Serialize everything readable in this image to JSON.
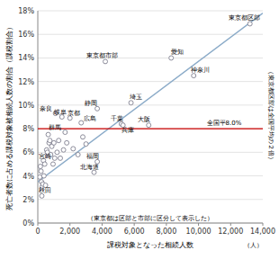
{
  "chart_data": {
    "type": "scatter",
    "xlabel": "課税対象となった相続人数",
    "ylabel": "死亡者数に占める課税対象被相続人数の割合（課税割合）",
    "note": "（東京都は区部と市部に区分して表示した）",
    "unit": "（人）",
    "side_note": "（東京都区部は全国平均の２倍）",
    "series": [
      {
        "type": "scatter",
        "marker": "circle",
        "color": "#808090",
        "x": [
          13200,
          4200,
          8300,
          9700,
          5800,
          3700,
          5200,
          5300,
          6900,
          1100,
          1500,
          2000,
          2700,
          1700,
          3700,
          3500,
          350,
          250,
          130,
          160,
          200,
          230,
          280,
          320,
          380,
          430,
          480,
          550,
          600,
          650,
          700,
          750,
          800,
          870,
          950,
          1000,
          1050,
          1200,
          1300,
          1400,
          1600,
          1800,
          2200,
          2500,
          2800,
          3000
        ],
        "values": [
          16.9,
          13.7,
          14.0,
          12.5,
          10.2,
          9.7,
          8.4,
          8.3,
          8.3,
          9.3,
          9.0,
          8.9,
          8.5,
          7.7,
          5.2,
          4.3,
          5.3,
          2.3,
          3.9,
          4.8,
          4.4,
          3.5,
          3.1,
          3.3,
          4.0,
          5.0,
          3.2,
          6.2,
          6.0,
          7.5,
          6.8,
          7.0,
          5.8,
          6.5,
          5.0,
          6.8,
          5.5,
          6.0,
          7.0,
          5.5,
          6.2,
          6.8,
          6.3,
          5.8,
          7.3,
          6.7
        ],
        "point_labels": [
          "東京都区部",
          "東京都市部",
          "愛知",
          "神奈川",
          "埼玉",
          "静岡",
          "千葉",
          "兵庫",
          "大阪",
          "奈良",
          "岐阜",
          "京都",
          "広島",
          "群馬",
          "福岡",
          "北海道",
          "宮崎",
          "秋田",
          null,
          null,
          null,
          null,
          null,
          null,
          null,
          null,
          null,
          null,
          null,
          null,
          null,
          null,
          null,
          null,
          null,
          null,
          null,
          null,
          null,
          null,
          null,
          null,
          null,
          null,
          null,
          null
        ]
      },
      {
        "type": "line",
        "color": "#8aaac8",
        "x": [
          0,
          14000
        ],
        "values": [
          3.5,
          17.8
        ]
      }
    ],
    "hline": {
      "value": 8.0,
      "label": "全国平8.0%",
      "color": "#cc0000"
    },
    "xlim": [
      0,
      14000
    ],
    "ylim": [
      0,
      18
    ],
    "xticks": [
      0,
      {
        "value": 2000,
        "label": "2,000"
      },
      {
        "value": 4000,
        "label": "4,000"
      },
      {
        "value": 6000,
        "label": "6,000"
      },
      {
        "value": 8000,
        "label": "8,000"
      },
      {
        "value": 10000,
        "label": "10,000"
      },
      {
        "value": 12000,
        "label": "12,000"
      },
      {
        "value": 14000,
        "label": "14,000"
      }
    ],
    "yticks": [
      {
        "value": 0,
        "label": "0%"
      },
      {
        "value": 2,
        "label": "2%"
      },
      {
        "value": 4,
        "label": "4%"
      },
      {
        "value": 6,
        "label": "6%"
      },
      {
        "value": 8,
        "label": "8%"
      },
      {
        "value": 10,
        "label": "10%"
      },
      {
        "value": 12,
        "label": "12%"
      },
      {
        "value": 14,
        "label": "14%"
      },
      {
        "value": 16,
        "label": "16%"
      },
      {
        "value": 18,
        "label": "18%"
      }
    ],
    "grid": true
  }
}
